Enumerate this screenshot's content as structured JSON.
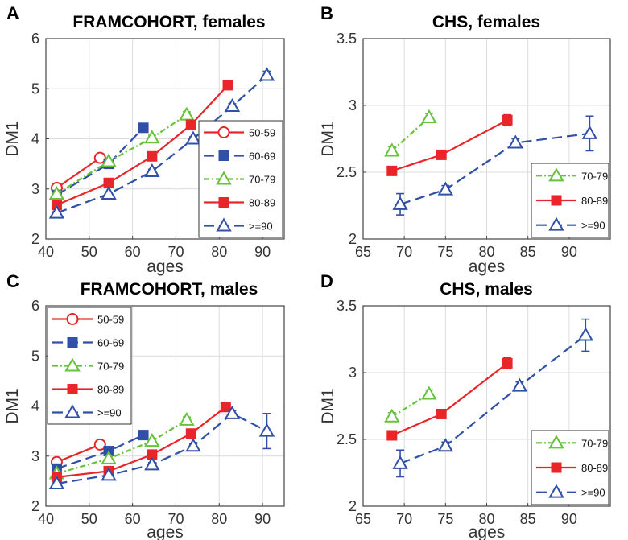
{
  "colors": {
    "c50": "#e8262a",
    "c60": "#3050a8",
    "c70": "#66c23a",
    "c80": "#e8262a",
    "c90": "#3050a8"
  },
  "chart_data": [
    {
      "type": "line",
      "panel": "A",
      "title": "FRAMCOHORT, females",
      "xlabel": "ages",
      "ylabel": "DM1",
      "xlim": [
        40,
        95
      ],
      "ylim": [
        2,
        6
      ],
      "xticks": [
        "40",
        "50",
        "60",
        "70",
        "80",
        "90"
      ],
      "yticks": [
        "2",
        "3",
        "4",
        "5",
        "6"
      ],
      "legend_position": "bottom-right",
      "series": [
        {
          "name": "50-59",
          "x": [
            42.5,
            52.5
          ],
          "y": [
            3.02,
            3.62
          ],
          "err": [
            0.04,
            0.06
          ]
        },
        {
          "name": "60-69",
          "x": [
            42.5,
            54.5,
            62.5
          ],
          "y": [
            2.88,
            3.5,
            4.22
          ],
          "err": [
            0.03,
            0.05,
            0.06
          ]
        },
        {
          "name": "70-79",
          "x": [
            42.5,
            54.5,
            64.5,
            72.5
          ],
          "y": [
            2.9,
            3.55,
            4.02,
            4.48
          ],
          "err": [
            0.03,
            0.04,
            0.05,
            0.06
          ]
        },
        {
          "name": "80-89",
          "x": [
            42.5,
            54.5,
            64.5,
            73.5,
            82
          ],
          "y": [
            2.68,
            3.12,
            3.65,
            4.28,
            5.07
          ],
          "err": [
            0.03,
            0.03,
            0.04,
            0.05,
            0.06
          ]
        },
        {
          "name": ">=90",
          "x": [
            42.5,
            54.5,
            64.5,
            74,
            83,
            91
          ],
          "y": [
            2.52,
            2.9,
            3.35,
            4.0,
            4.65,
            5.27
          ],
          "err": [
            0.03,
            0.03,
            0.04,
            0.04,
            0.05,
            0.08
          ]
        }
      ]
    },
    {
      "type": "line",
      "panel": "B",
      "title": "CHS, females",
      "xlabel": "ages",
      "ylabel": "DM1",
      "xlim": [
        65,
        95
      ],
      "ylim": [
        2,
        3.5
      ],
      "xticks": [
        "65",
        "70",
        "75",
        "80",
        "85",
        "90"
      ],
      "yticks": [
        "2",
        "2.5",
        "3",
        "3.5"
      ],
      "legend_position": "bottom-right",
      "series": [
        {
          "name": "70-79",
          "x": [
            68.5,
            73
          ],
          "y": [
            2.66,
            2.91
          ],
          "err": [
            0.03,
            0.03
          ]
        },
        {
          "name": "80-89",
          "x": [
            68.5,
            74.5,
            82.5
          ],
          "y": [
            2.51,
            2.63,
            2.89
          ],
          "err": [
            0.02,
            0.02,
            0.04
          ]
        },
        {
          "name": ">=90",
          "x": [
            69.5,
            75,
            83.5,
            92.5
          ],
          "y": [
            2.26,
            2.37,
            2.72,
            2.79
          ],
          "err": [
            0.08,
            0.03,
            0.03,
            0.13
          ]
        }
      ]
    },
    {
      "type": "line",
      "panel": "C",
      "title": "FRAMCOHORT, males",
      "xlabel": "ages",
      "ylabel": "DM1",
      "xlim": [
        40,
        95
      ],
      "ylim": [
        2,
        6
      ],
      "xticks": [
        "40",
        "50",
        "60",
        "70",
        "80",
        "90"
      ],
      "yticks": [
        "2",
        "3",
        "4",
        "5",
        "6"
      ],
      "legend_position": "top-left",
      "series": [
        {
          "name": "50-59",
          "x": [
            42.5,
            52.5
          ],
          "y": [
            2.88,
            3.23
          ],
          "err": [
            0.04,
            0.06
          ]
        },
        {
          "name": "60-69",
          "x": [
            42.5,
            54.5,
            62.5
          ],
          "y": [
            2.75,
            3.1,
            3.42
          ],
          "err": [
            0.04,
            0.04,
            0.05
          ]
        },
        {
          "name": "70-79",
          "x": [
            42.5,
            54.5,
            64.5,
            72.5
          ],
          "y": [
            2.65,
            2.95,
            3.3,
            3.72
          ],
          "err": [
            0.03,
            0.04,
            0.04,
            0.06
          ]
        },
        {
          "name": "80-89",
          "x": [
            42.5,
            54.5,
            64.5,
            73.5,
            81.5
          ],
          "y": [
            2.58,
            2.7,
            3.03,
            3.45,
            3.98
          ],
          "err": [
            0.03,
            0.03,
            0.04,
            0.05,
            0.06
          ]
        },
        {
          "name": ">=90",
          "x": [
            42.5,
            54.5,
            64.5,
            74,
            83,
            91
          ],
          "y": [
            2.45,
            2.62,
            2.83,
            3.2,
            3.85,
            3.5
          ],
          "err": [
            0.03,
            0.03,
            0.04,
            0.04,
            0.06,
            0.35
          ]
        }
      ]
    },
    {
      "type": "line",
      "panel": "D",
      "title": "CHS, males",
      "xlabel": "ages",
      "ylabel": "DM1",
      "xlim": [
        65,
        95
      ],
      "ylim": [
        2,
        3.5
      ],
      "xticks": [
        "65",
        "70",
        "75",
        "80",
        "85",
        "90"
      ],
      "yticks": [
        "2",
        "2.5",
        "3",
        "3.5"
      ],
      "legend_position": "bottom-right",
      "series": [
        {
          "name": "70-79",
          "x": [
            68.5,
            73
          ],
          "y": [
            2.67,
            2.84
          ],
          "err": [
            0.03,
            0.03
          ]
        },
        {
          "name": "80-89",
          "x": [
            68.5,
            74.5,
            82.5
          ],
          "y": [
            2.53,
            2.69,
            3.07
          ],
          "err": [
            0.02,
            0.02,
            0.04
          ]
        },
        {
          "name": ">=90",
          "x": [
            69.5,
            75,
            84,
            92
          ],
          "y": [
            2.32,
            2.45,
            2.9,
            3.28
          ],
          "err": [
            0.1,
            0.03,
            0.03,
            0.12
          ]
        }
      ]
    }
  ]
}
